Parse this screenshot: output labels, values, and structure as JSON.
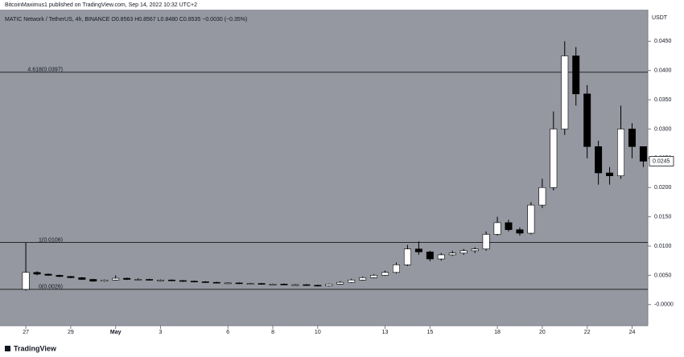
{
  "chart_data": {
    "type": "candlestick",
    "header": "BitcoinMaximus1 published on TradingView.com, Sep 14, 2022 10:32 UTC+2",
    "title": "MATIC Network / TetherUS, 4h, BINANCE  O0.8563  H0.8567  L0.8480  C0.8535  −0.0030 (−0.35%)",
    "axis_unit": "USDT",
    "footer": "TradingView",
    "up_color": "#ffffff",
    "down_color": "#000000",
    "background": "#9598a1",
    "x": [
      0,
      0.5,
      1,
      1.5,
      2,
      2.5,
      3,
      3.5,
      4,
      4.5,
      5,
      5.5,
      6,
      6.5,
      7,
      7.5,
      8,
      8.5,
      9,
      9.5,
      10,
      10.5,
      11,
      11.5,
      12,
      12.5,
      13,
      13.5,
      14,
      14.5,
      15,
      15.5,
      16,
      16.5,
      17,
      17.5,
      18,
      18.5,
      19,
      19.5,
      20,
      20.5,
      21,
      21.5,
      22,
      22.5,
      23,
      23.5,
      24,
      24.5,
      25,
      25.5,
      26,
      26.5,
      27,
      27.5
    ],
    "open": [
      0.0026,
      0.0055,
      0.0052,
      0.005,
      0.0048,
      0.0046,
      0.0043,
      0.004,
      0.0042,
      0.0045,
      0.0043,
      0.0043,
      0.0042,
      0.0042,
      0.0041,
      0.004,
      0.0039,
      0.0038,
      0.0037,
      0.0037,
      0.0036,
      0.0036,
      0.0035,
      0.0035,
      0.0034,
      0.0034,
      0.0033,
      0.0032,
      0.0035,
      0.0038,
      0.0042,
      0.0046,
      0.005,
      0.0055,
      0.0068,
      0.0095,
      0.009,
      0.0078,
      0.0085,
      0.0088,
      0.0092,
      0.0095,
      0.012,
      0.014,
      0.0128,
      0.0122,
      0.017,
      0.02,
      0.03,
      0.0425,
      0.036,
      0.027,
      0.0225,
      0.022,
      0.03,
      0.027
    ],
    "high": [
      0.0106,
      0.0057,
      0.0053,
      0.0051,
      0.0049,
      0.0047,
      0.0044,
      0.0043,
      0.005,
      0.0046,
      0.0045,
      0.0044,
      0.0043,
      0.0043,
      0.0042,
      0.0041,
      0.004,
      0.0039,
      0.0038,
      0.0038,
      0.0037,
      0.0037,
      0.0036,
      0.0036,
      0.0035,
      0.0035,
      0.0034,
      0.0036,
      0.004,
      0.0044,
      0.0048,
      0.0052,
      0.0058,
      0.0072,
      0.0102,
      0.0108,
      0.0092,
      0.0088,
      0.0092,
      0.0095,
      0.0098,
      0.0125,
      0.015,
      0.0145,
      0.0132,
      0.0175,
      0.0215,
      0.033,
      0.045,
      0.044,
      0.0375,
      0.028,
      0.0235,
      0.034,
      0.031,
      0.027
    ],
    "low": [
      0.0024,
      0.005,
      0.0049,
      0.0047,
      0.0045,
      0.0042,
      0.0039,
      0.0039,
      0.0041,
      0.0042,
      0.0041,
      0.0041,
      0.004,
      0.004,
      0.0039,
      0.0038,
      0.0037,
      0.0036,
      0.0036,
      0.0035,
      0.0035,
      0.0034,
      0.0034,
      0.0033,
      0.0033,
      0.0032,
      0.0031,
      0.0031,
      0.0034,
      0.0037,
      0.0041,
      0.0045,
      0.0049,
      0.0053,
      0.0066,
      0.0085,
      0.0074,
      0.0075,
      0.0083,
      0.0085,
      0.0088,
      0.0092,
      0.0118,
      0.0125,
      0.0118,
      0.012,
      0.0165,
      0.0195,
      0.029,
      0.034,
      0.025,
      0.0205,
      0.0205,
      0.0215,
      0.025,
      0.0235
    ],
    "close": [
      0.0055,
      0.0052,
      0.005,
      0.0048,
      0.0046,
      0.0043,
      0.004,
      0.0042,
      0.0045,
      0.0043,
      0.0043,
      0.0042,
      0.0042,
      0.0041,
      0.004,
      0.0039,
      0.0038,
      0.0037,
      0.0037,
      0.0036,
      0.0036,
      0.0035,
      0.0035,
      0.0034,
      0.0034,
      0.0033,
      0.0032,
      0.0035,
      0.0038,
      0.0042,
      0.0046,
      0.005,
      0.0055,
      0.0068,
      0.0095,
      0.009,
      0.0078,
      0.0085,
      0.0088,
      0.0092,
      0.0095,
      0.012,
      0.014,
      0.0128,
      0.0122,
      0.017,
      0.02,
      0.03,
      0.0425,
      0.036,
      0.027,
      0.0225,
      0.022,
      0.03,
      0.027,
      0.0245
    ],
    "xlim": [
      -1.15,
      27.7
    ],
    "xticks": [
      {
        "value": 0,
        "label": "27"
      },
      {
        "value": 2,
        "label": "29"
      },
      {
        "value": 4,
        "label": "May"
      },
      {
        "value": 6,
        "label": "3"
      },
      {
        "value": 9,
        "label": "6"
      },
      {
        "value": 11,
        "label": "8"
      },
      {
        "value": 13,
        "label": "10"
      },
      {
        "value": 16,
        "label": "13"
      },
      {
        "value": 18,
        "label": "15"
      },
      {
        "value": 21,
        "label": "18"
      },
      {
        "value": 23,
        "label": "20"
      },
      {
        "value": 25,
        "label": "22"
      },
      {
        "value": 27,
        "label": "24"
      }
    ],
    "ylim": [
      -0.0036,
      0.0504
    ],
    "yticks": [
      {
        "value": 0.045,
        "label": "0.0450"
      },
      {
        "value": 0.04,
        "label": "0.0400"
      },
      {
        "value": 0.035,
        "label": "0.0350"
      },
      {
        "value": 0.03,
        "label": "0.0300"
      },
      {
        "value": 0.025,
        "label": "0.0250"
      },
      {
        "value": 0.02,
        "label": "0.0200"
      },
      {
        "value": 0.015,
        "label": "0.0150"
      },
      {
        "value": 0.01,
        "label": "0.0100"
      },
      {
        "value": 0.005,
        "label": "0.0050"
      },
      {
        "value": 0,
        "label": "-0.0000"
      }
    ],
    "levels": [
      {
        "value": 0.0397,
        "label": "4.618(0.0397)"
      },
      {
        "value": 0.0106,
        "label": "1(0.0106)"
      },
      {
        "value": 0.0026,
        "label": "0(0.0026)"
      }
    ],
    "last_price": {
      "value": 0.0245,
      "label": "0.0245"
    }
  }
}
